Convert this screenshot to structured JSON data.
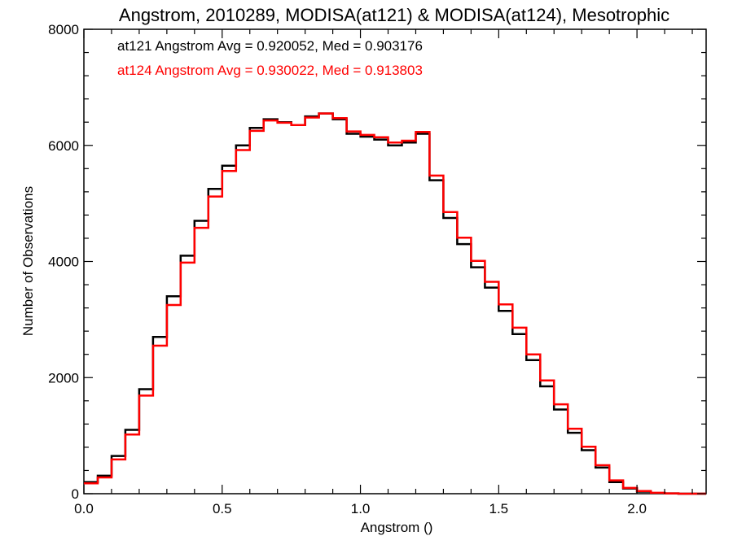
{
  "chart_data": {
    "type": "line",
    "title": "Angstrom, 2010289, MODISA(at121) & MODISA(at124), Mesotrophic",
    "xlabel": "Angstrom ()",
    "ylabel": "Number of Observations",
    "xlim": [
      0.0,
      2.25
    ],
    "ylim": [
      0,
      8000
    ],
    "x_ticks": [
      0.0,
      0.5,
      1.0,
      1.5,
      2.0
    ],
    "x_tick_labels": [
      "0.0",
      "0.5",
      "1.0",
      "1.5",
      "2.0"
    ],
    "y_ticks": [
      0,
      2000,
      4000,
      6000,
      8000
    ],
    "y_tick_labels": [
      "0",
      "2000",
      "4000",
      "6000",
      "8000"
    ],
    "grid": false,
    "step": true,
    "annotations": [
      {
        "text": "at121 Angstrom Avg = 0.920052, Med = 0.903176",
        "color": "#000000"
      },
      {
        "text": "at124 Angstrom Avg = 0.930022, Med = 0.913803",
        "color": "#ff0000"
      }
    ],
    "series": [
      {
        "color": "#000000",
        "x": [
          0.0,
          0.05,
          0.1,
          0.15,
          0.2,
          0.25,
          0.3,
          0.35,
          0.4,
          0.45,
          0.5,
          0.55,
          0.6,
          0.65,
          0.7,
          0.75,
          0.8,
          0.85,
          0.9,
          0.95,
          1.0,
          1.05,
          1.1,
          1.15,
          1.2,
          1.25,
          1.3,
          1.35,
          1.4,
          1.45,
          1.5,
          1.55,
          1.6,
          1.65,
          1.7,
          1.75,
          1.8,
          1.85,
          1.9,
          1.95,
          2.0,
          2.05,
          2.1,
          2.15,
          2.2,
          2.25
        ],
        "y": [
          200,
          310,
          650,
          1100,
          1800,
          2700,
          3400,
          4100,
          4700,
          5250,
          5650,
          6000,
          6300,
          6450,
          6400,
          6350,
          6500,
          6550,
          6450,
          6200,
          6150,
          6100,
          6000,
          6050,
          6200,
          5400,
          4750,
          4300,
          3900,
          3550,
          3150,
          2750,
          2300,
          1850,
          1450,
          1050,
          750,
          450,
          200,
          90,
          35,
          10,
          5,
          0,
          0,
          0
        ]
      },
      {
        "color": "#ff0000",
        "x": [
          0.0,
          0.05,
          0.1,
          0.15,
          0.2,
          0.25,
          0.3,
          0.35,
          0.4,
          0.45,
          0.5,
          0.55,
          0.6,
          0.65,
          0.7,
          0.75,
          0.8,
          0.85,
          0.9,
          0.95,
          1.0,
          1.05,
          1.1,
          1.15,
          1.2,
          1.25,
          1.3,
          1.35,
          1.4,
          1.45,
          1.5,
          1.55,
          1.6,
          1.65,
          1.7,
          1.75,
          1.8,
          1.85,
          1.9,
          1.95,
          2.0,
          2.05,
          2.1,
          2.15,
          2.2,
          2.25
        ],
        "y": [
          180,
          280,
          590,
          1020,
          1690,
          2550,
          3250,
          3980,
          4580,
          5120,
          5560,
          5920,
          6250,
          6430,
          6390,
          6350,
          6480,
          6550,
          6470,
          6240,
          6180,
          6140,
          6050,
          6080,
          6230,
          5480,
          4850,
          4410,
          4010,
          3650,
          3260,
          2860,
          2400,
          1950,
          1540,
          1120,
          810,
          490,
          230,
          100,
          45,
          15,
          5,
          0,
          0,
          0
        ]
      }
    ]
  }
}
